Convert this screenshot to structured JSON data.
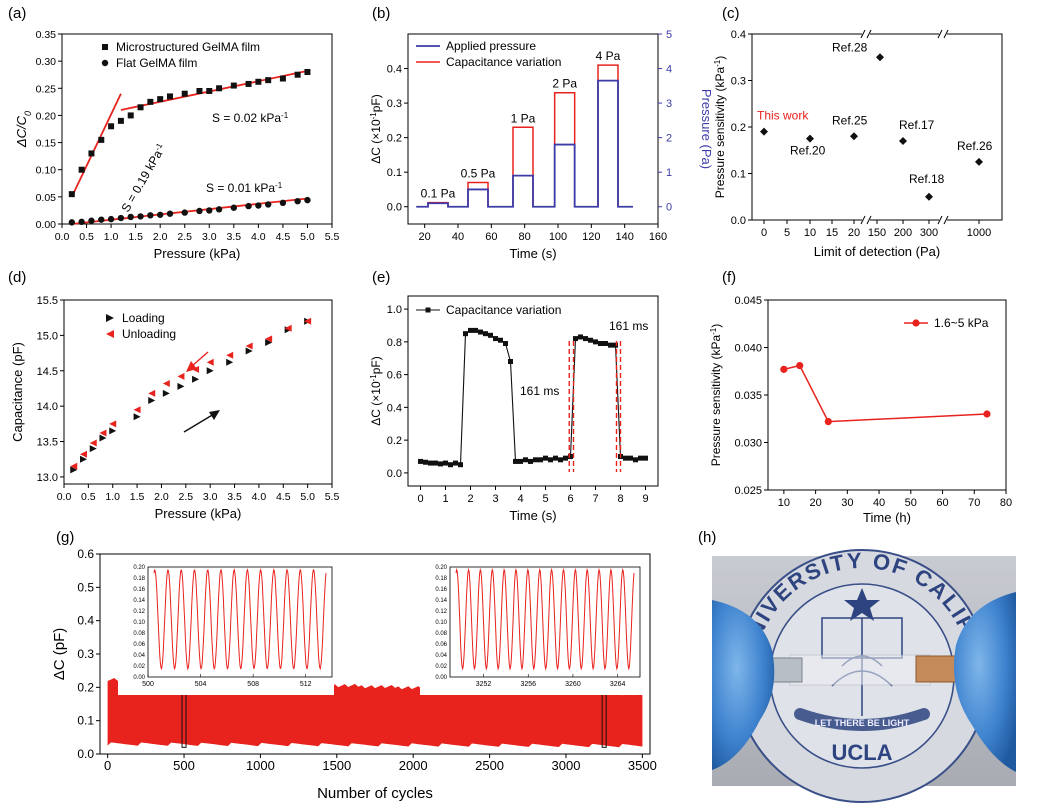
{
  "panel_labels": [
    "(a)",
    "(b)",
    "(c)",
    "(d)",
    "(e)",
    "(f)",
    "(g)",
    "(h)"
  ],
  "colors": {
    "red": "#e8231e",
    "blue": "#3c3ca8",
    "black": "#111111"
  },
  "chart_data": [
    {
      "id": "a",
      "type": "scatter",
      "xlabel": "Pressure (kPa)",
      "ylabel": "ΔC/C",
      "ylabel_sub": "0",
      "xlim": [
        0,
        5.5
      ],
      "ylim": [
        0,
        0.35
      ],
      "xticks": [
        "0.0",
        "0.5",
        "1.0",
        "1.5",
        "2.0",
        "2.5",
        "3.0",
        "3.5",
        "4.0",
        "4.5",
        "5.0",
        "5.5"
      ],
      "yticks": [
        "0.00",
        "0.05",
        "0.10",
        "0.15",
        "0.20",
        "0.25",
        "0.30",
        "0.35"
      ],
      "legend": [
        "Microstructured GelMA film",
        "Flat GelMA film"
      ],
      "annotations": [
        {
          "text": "S = 0.02 kPa",
          "sup": "-1"
        },
        {
          "text": "S = 0.19 kPa",
          "sup": "-1"
        },
        {
          "text": "S = 0.01 kPa",
          "sup": "-1"
        }
      ],
      "series": [
        {
          "name": "Microstructured GelMA film",
          "marker": "square",
          "x": [
            0.2,
            0.4,
            0.6,
            0.8,
            1.0,
            1.2,
            1.4,
            1.6,
            1.8,
            2.0,
            2.2,
            2.5,
            2.8,
            3.0,
            3.2,
            3.5,
            3.8,
            4.0,
            4.2,
            4.5,
            4.8,
            5.0
          ],
          "y": [
            0.055,
            0.1,
            0.13,
            0.155,
            0.18,
            0.19,
            0.2,
            0.215,
            0.225,
            0.23,
            0.235,
            0.24,
            0.245,
            0.245,
            0.25,
            0.255,
            0.258,
            0.262,
            0.265,
            0.268,
            0.275,
            0.28
          ]
        },
        {
          "name": "Flat GelMA film",
          "marker": "circle",
          "x": [
            0.2,
            0.4,
            0.6,
            0.8,
            1.0,
            1.2,
            1.4,
            1.6,
            1.8,
            2.0,
            2.2,
            2.5,
            2.8,
            3.0,
            3.2,
            3.5,
            3.8,
            4.0,
            4.2,
            4.5,
            4.8,
            5.0
          ],
          "y": [
            0.003,
            0.004,
            0.006,
            0.008,
            0.009,
            0.011,
            0.013,
            0.014,
            0.016,
            0.017,
            0.019,
            0.021,
            0.024,
            0.025,
            0.027,
            0.03,
            0.033,
            0.034,
            0.036,
            0.039,
            0.042,
            0.044
          ]
        }
      ],
      "fits": [
        {
          "x": [
            0.2,
            1.2
          ],
          "y": [
            0.05,
            0.24
          ]
        },
        {
          "x": [
            1.2,
            5.0
          ],
          "y": [
            0.21,
            0.282
          ]
        },
        {
          "x": [
            0.2,
            5.0
          ],
          "y": [
            0.0,
            0.047
          ]
        }
      ]
    },
    {
      "id": "b",
      "type": "line",
      "xlabel": "Time (s)",
      "ylabel": "ΔC (×10",
      "ylabel_sup": "-1",
      "ylabel_end": "pF)",
      "y2label": "Pressure (Pa)",
      "xlim": [
        10,
        160
      ],
      "ylim": [
        -0.05,
        0.5
      ],
      "y2lim": [
        -0.5,
        5
      ],
      "xticks": [
        "20",
        "40",
        "60",
        "80",
        "100",
        "120",
        "140",
        "160"
      ],
      "yticks": [
        "0.0",
        "0.1",
        "0.2",
        "0.3",
        "0.4"
      ],
      "y2ticks": [
        "0",
        "1",
        "2",
        "3",
        "4",
        "5"
      ],
      "legend": [
        "Applied pressure",
        "Capacitance variation"
      ],
      "pulses": [
        {
          "label": "0.1 Pa",
          "t0": 22,
          "t1": 34,
          "dc": 0.012,
          "p": 0.1
        },
        {
          "label": "0.5 Pa",
          "t0": 46,
          "t1": 58,
          "dc": 0.07,
          "p": 0.5
        },
        {
          "label": "1 Pa",
          "t0": 73,
          "t1": 85,
          "dc": 0.23,
          "p": 0.9
        },
        {
          "label": "2 Pa",
          "t0": 98,
          "t1": 110,
          "dc": 0.33,
          "p": 1.8
        },
        {
          "label": "4 Pa",
          "t0": 124,
          "t1": 136,
          "dc": 0.41,
          "p": 3.65
        }
      ]
    },
    {
      "id": "c",
      "type": "scatter",
      "xlabel": "Limit of detection (Pa)",
      "ylabel": "Pressure sensitivity (kPa",
      "ylabel_sup": "-1",
      "ylabel_end": ")",
      "ylim": [
        0,
        0.4
      ],
      "xticks": [
        "0",
        "5",
        "10",
        "15",
        "20",
        "150",
        "200",
        "300",
        "1000"
      ],
      "yticks": [
        "0.0",
        "0.1",
        "0.2",
        "0.3",
        "0.4"
      ],
      "points": [
        {
          "label": "This work",
          "x": "0",
          "y": 0.19,
          "highlight": true
        },
        {
          "label": "Ref.20",
          "x": "10",
          "y": 0.175
        },
        {
          "label": "Ref.25",
          "x": "20",
          "y": 0.18
        },
        {
          "label": "Ref.28",
          "x": "140",
          "y": 0.35
        },
        {
          "label": "Ref.17",
          "x": "200",
          "y": 0.17
        },
        {
          "label": "Ref.18",
          "x": "300",
          "y": 0.05
        },
        {
          "label": "Ref.26",
          "x": "1000",
          "y": 0.125
        }
      ]
    },
    {
      "id": "d",
      "type": "scatter",
      "xlabel": "Pressure (kPa)",
      "ylabel": "Capacitance (pF)",
      "xlim": [
        0,
        5.5
      ],
      "ylim": [
        12.9,
        15.5
      ],
      "xticks": [
        "0.0",
        "0.5",
        "1.0",
        "1.5",
        "2.0",
        "2.5",
        "3.0",
        "3.5",
        "4.0",
        "4.5",
        "5.0",
        "5.5"
      ],
      "yticks": [
        "13.0",
        "13.5",
        "14.0",
        "14.5",
        "15.0",
        "15.5"
      ],
      "legend": [
        "Loading",
        "Unloading"
      ],
      "series": [
        {
          "name": "Loading",
          "x": [
            0.2,
            0.4,
            0.6,
            0.8,
            1.0,
            1.5,
            1.8,
            2.1,
            2.4,
            2.7,
            3.0,
            3.4,
            3.8,
            4.2,
            4.6,
            5.0
          ],
          "y": [
            13.1,
            13.25,
            13.4,
            13.55,
            13.65,
            13.85,
            14.08,
            14.18,
            14.28,
            14.38,
            14.5,
            14.62,
            14.78,
            14.9,
            15.08,
            15.2
          ]
        },
        {
          "name": "Unloading",
          "x": [
            0.2,
            0.4,
            0.6,
            0.8,
            1.0,
            1.5,
            1.8,
            2.1,
            2.4,
            2.7,
            3.0,
            3.4,
            3.8,
            4.2,
            4.6,
            5.0
          ],
          "y": [
            13.15,
            13.32,
            13.48,
            13.62,
            13.75,
            13.95,
            14.18,
            14.32,
            14.42,
            14.52,
            14.62,
            14.72,
            14.85,
            14.95,
            15.1,
            15.2
          ]
        }
      ]
    },
    {
      "id": "e",
      "type": "line",
      "xlabel": "Time (s)",
      "ylabel": "ΔC (×10",
      "ylabel_sup": "-1",
      "ylabel_end": "pF)",
      "xlim": [
        -0.5,
        9.5
      ],
      "ylim": [
        -0.08,
        1.08
      ],
      "xticks": [
        "0",
        "1",
        "2",
        "3",
        "4",
        "5",
        "6",
        "7",
        "8",
        "9"
      ],
      "yticks": [
        "0.0",
        "0.2",
        "0.4",
        "0.6",
        "0.8",
        "1.0"
      ],
      "legend": [
        "Capacitance variation"
      ],
      "annotations": [
        "161 ms",
        "161 ms"
      ],
      "series": [
        {
          "name": "Capacitance variation",
          "x": [
            0,
            0.2,
            0.4,
            0.6,
            0.8,
            1.0,
            1.2,
            1.4,
            1.6,
            1.8,
            2.0,
            2.2,
            2.4,
            2.6,
            2.8,
            3.0,
            3.2,
            3.4,
            3.6,
            3.8,
            4.0,
            4.2,
            4.4,
            4.6,
            4.8,
            5.0,
            5.2,
            5.4,
            5.6,
            5.8,
            6.0,
            6.2,
            6.4,
            6.6,
            6.8,
            7.0,
            7.2,
            7.4,
            7.6,
            7.8,
            8.0,
            8.2,
            8.4,
            8.6,
            8.8,
            9.0
          ],
          "y": [
            0.07,
            0.065,
            0.06,
            0.06,
            0.055,
            0.06,
            0.05,
            0.06,
            0.05,
            0.85,
            0.87,
            0.87,
            0.86,
            0.85,
            0.84,
            0.82,
            0.81,
            0.79,
            0.68,
            0.07,
            0.07,
            0.08,
            0.07,
            0.08,
            0.08,
            0.09,
            0.08,
            0.09,
            0.08,
            0.09,
            0.1,
            0.82,
            0.83,
            0.82,
            0.81,
            0.8,
            0.79,
            0.79,
            0.78,
            0.78,
            0.1,
            0.09,
            0.09,
            0.08,
            0.09,
            0.09
          ]
        }
      ]
    },
    {
      "id": "f",
      "type": "line",
      "xlabel": "Time (h)",
      "ylabel": "Pressure sensitivity (kPa",
      "ylabel_sup": "-1",
      "ylabel_end": ")",
      "xlim": [
        5,
        80
      ],
      "ylim": [
        0.025,
        0.045
      ],
      "xticks": [
        "10",
        "20",
        "30",
        "40",
        "50",
        "60",
        "70",
        "80"
      ],
      "yticks": [
        "0.025",
        "0.030",
        "0.035",
        "0.040",
        "0.045"
      ],
      "legend": [
        "1.6~5 kPa"
      ],
      "series": [
        {
          "name": "1.6~5 kPa",
          "x": [
            10,
            15,
            24,
            74
          ],
          "y": [
            0.0377,
            0.0381,
            0.0322,
            0.033
          ]
        }
      ]
    },
    {
      "id": "g",
      "type": "area",
      "xlabel": "Number of cycles",
      "ylabel": "ΔC (pF)",
      "xlim": [
        -50,
        3550
      ],
      "ylim": [
        0,
        0.6
      ],
      "xticks": [
        "0",
        "500",
        "1000",
        "1500",
        "2000",
        "2500",
        "3000",
        "3500"
      ],
      "yticks": [
        "0.0",
        "0.1",
        "0.2",
        "0.3",
        "0.4",
        "0.5",
        "0.6"
      ],
      "band": {
        "x": [
          0,
          3500
        ],
        "upper": [
          0.225,
          0.18
        ],
        "lower": [
          0.03,
          0.025
        ]
      },
      "insets": [
        {
          "xlim": [
            500,
            514
          ],
          "xticks": [
            "500",
            "504",
            "508",
            "512"
          ],
          "cycles": 13,
          "yticks": [
            "0.00",
            "0.02",
            "0.04",
            "0.06",
            "0.08",
            "0.10",
            "0.12",
            "0.14",
            "0.16",
            "0.18",
            "0.20"
          ],
          "marker_x": 500
        },
        {
          "xlim": [
            3249,
            3266
          ],
          "xticks": [
            "3252",
            "3256",
            "3260",
            "3264"
          ],
          "cycles": 15,
          "yticks": [
            "0.00",
            "0.02",
            "0.04",
            "0.06",
            "0.08",
            "0.10",
            "0.12",
            "0.14",
            "0.16",
            "0.18",
            "0.20"
          ],
          "marker_x": 3250
        }
      ]
    }
  ],
  "photo": {
    "seal_ring_text": "THE UNIVERSITY OF CALIFORNIA",
    "seal_motto": "LET THERE BE LIGHT",
    "seal_bottom": "UCLA"
  }
}
